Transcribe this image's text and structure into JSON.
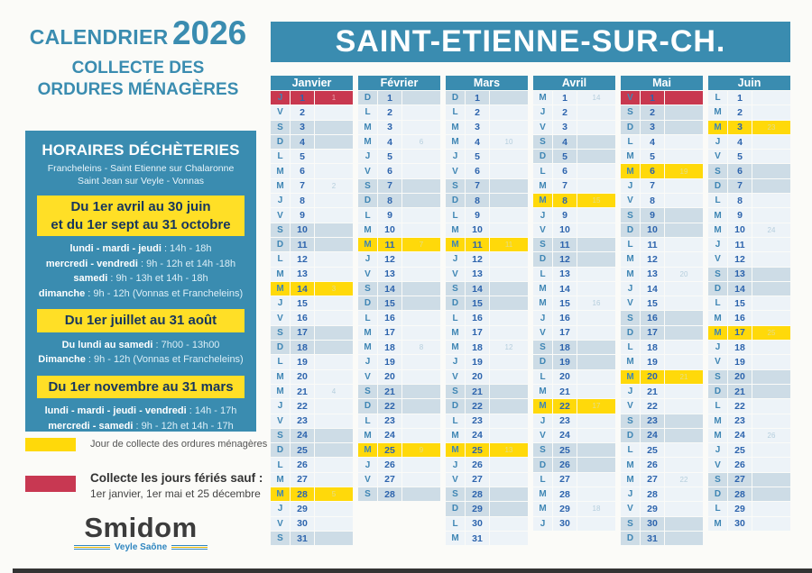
{
  "left": {
    "title_small": "CALENDRIER",
    "title_year": "2026",
    "subtitle_line1": "COLLECTE DES",
    "subtitle_line2": "ORDURES MÉNAGÈRES",
    "horaires": {
      "title": "HORAIRES DÉCHÈTERIES",
      "sites_line1": "Francheleins - Saint Etienne sur Chalaronne",
      "sites_line2": "Saint Jean sur Veyle - Vonnas",
      "periods": [
        {
          "banner_lines": [
            "Du 1er avril au 30 juin",
            "et du 1er sept au 31 octobre"
          ],
          "lines": [
            {
              "bold": "lundi - mardi - jeudi",
              "rest": " : 14h - 18h"
            },
            {
              "bold": "mercredi - vendredi",
              "rest": " : 9h - 12h et 14h -18h"
            },
            {
              "bold": "samedi",
              "rest": " : 9h - 13h et 14h - 18h"
            },
            {
              "bold": "dimanche",
              "rest": " : 9h - 12h (Vonnas et Francheleins)"
            }
          ]
        },
        {
          "banner_lines": [
            "Du 1er juillet au 31 août"
          ],
          "lines": [
            {
              "bold": "Du lundi au samedi",
              "rest": " : 7h00 - 13h00"
            },
            {
              "bold": "Dimanche",
              "rest": " : 9h - 12h (Vonnas et Francheleins)"
            }
          ]
        },
        {
          "banner_lines": [
            "Du 1er novembre au 31 mars"
          ],
          "lines": [
            {
              "bold": "lundi - mardi - jeudi - vendredi",
              "rest": " : 14h - 17h"
            },
            {
              "bold": "mercredi - samedi",
              "rest": " : 9h - 12h et 14h - 17h"
            }
          ]
        }
      ]
    },
    "legend": {
      "collect": {
        "color": "#ffd90a",
        "text": "Jour de collecte des ordures ménagères"
      },
      "holiday": {
        "color": "#c83852",
        "title": "Collecte les jours fériés sauf :",
        "subtitle": "1er janvier, 1er mai et 25 décembre"
      }
    },
    "logo": {
      "name": "Smidom",
      "sub": "Veyle Saône"
    }
  },
  "header": {
    "title": "SAINT-ETIENNE-SUR-CH."
  },
  "colors": {
    "teal": "#3a8cb0",
    "collect_yellow": "#ffd90a",
    "holiday_red": "#c8384f",
    "weekend_shade": "#cddce6",
    "weekday_shade": "#edf3f8",
    "banner_yellow": "#ffdf26"
  },
  "calendar": {
    "day_types_legend": {
      "n": "weekday",
      "w": "weekend",
      "c": "collection-day-yellow",
      "h": "holiday-no-collection-red"
    },
    "months": [
      {
        "name": "Janvier",
        "days": [
          [
            "J",
            1,
            "h",
            1
          ],
          [
            "V",
            2,
            "n"
          ],
          [
            "S",
            3,
            "w"
          ],
          [
            "D",
            4,
            "w"
          ],
          [
            "L",
            5,
            "n"
          ],
          [
            "M",
            6,
            "n"
          ],
          [
            "M",
            7,
            "n",
            2
          ],
          [
            "J",
            8,
            "n"
          ],
          [
            "V",
            9,
            "n"
          ],
          [
            "S",
            10,
            "w"
          ],
          [
            "D",
            11,
            "w"
          ],
          [
            "L",
            12,
            "n"
          ],
          [
            "M",
            13,
            "n"
          ],
          [
            "M",
            14,
            "c",
            3
          ],
          [
            "J",
            15,
            "n"
          ],
          [
            "V",
            16,
            "n"
          ],
          [
            "S",
            17,
            "w"
          ],
          [
            "D",
            18,
            "w"
          ],
          [
            "L",
            19,
            "n"
          ],
          [
            "M",
            20,
            "n"
          ],
          [
            "M",
            21,
            "n",
            4
          ],
          [
            "J",
            22,
            "n"
          ],
          [
            "V",
            23,
            "n"
          ],
          [
            "S",
            24,
            "w"
          ],
          [
            "D",
            25,
            "w"
          ],
          [
            "L",
            26,
            "n"
          ],
          [
            "M",
            27,
            "n"
          ],
          [
            "M",
            28,
            "c",
            5
          ],
          [
            "J",
            29,
            "n"
          ],
          [
            "V",
            30,
            "n"
          ],
          [
            "S",
            31,
            "w"
          ]
        ]
      },
      {
        "name": "Février",
        "days": [
          [
            "D",
            1,
            "w"
          ],
          [
            "L",
            2,
            "n"
          ],
          [
            "M",
            3,
            "n"
          ],
          [
            "M",
            4,
            "n",
            6
          ],
          [
            "J",
            5,
            "n"
          ],
          [
            "V",
            6,
            "n"
          ],
          [
            "S",
            7,
            "w"
          ],
          [
            "D",
            8,
            "w"
          ],
          [
            "L",
            9,
            "n"
          ],
          [
            "M",
            10,
            "n"
          ],
          [
            "M",
            11,
            "c",
            7
          ],
          [
            "J",
            12,
            "n"
          ],
          [
            "V",
            13,
            "n"
          ],
          [
            "S",
            14,
            "w"
          ],
          [
            "D",
            15,
            "w"
          ],
          [
            "L",
            16,
            "n"
          ],
          [
            "M",
            17,
            "n"
          ],
          [
            "M",
            18,
            "n",
            8
          ],
          [
            "J",
            19,
            "n"
          ],
          [
            "V",
            20,
            "n"
          ],
          [
            "S",
            21,
            "w"
          ],
          [
            "D",
            22,
            "w"
          ],
          [
            "L",
            23,
            "n"
          ],
          [
            "M",
            24,
            "n"
          ],
          [
            "M",
            25,
            "c",
            9
          ],
          [
            "J",
            26,
            "n"
          ],
          [
            "V",
            27,
            "n"
          ],
          [
            "S",
            28,
            "w"
          ]
        ]
      },
      {
        "name": "Mars",
        "days": [
          [
            "D",
            1,
            "w"
          ],
          [
            "L",
            2,
            "n"
          ],
          [
            "M",
            3,
            "n"
          ],
          [
            "M",
            4,
            "n",
            10
          ],
          [
            "J",
            5,
            "n"
          ],
          [
            "V",
            6,
            "n"
          ],
          [
            "S",
            7,
            "w"
          ],
          [
            "D",
            8,
            "w"
          ],
          [
            "L",
            9,
            "n"
          ],
          [
            "M",
            10,
            "n"
          ],
          [
            "M",
            11,
            "c",
            11
          ],
          [
            "J",
            12,
            "n"
          ],
          [
            "V",
            13,
            "n"
          ],
          [
            "S",
            14,
            "w"
          ],
          [
            "D",
            15,
            "w"
          ],
          [
            "L",
            16,
            "n"
          ],
          [
            "M",
            17,
            "n"
          ],
          [
            "M",
            18,
            "n",
            12
          ],
          [
            "J",
            19,
            "n"
          ],
          [
            "V",
            20,
            "n"
          ],
          [
            "S",
            21,
            "w"
          ],
          [
            "D",
            22,
            "w"
          ],
          [
            "L",
            23,
            "n"
          ],
          [
            "M",
            24,
            "n"
          ],
          [
            "M",
            25,
            "c",
            13
          ],
          [
            "J",
            26,
            "n"
          ],
          [
            "V",
            27,
            "n"
          ],
          [
            "S",
            28,
            "w"
          ],
          [
            "D",
            29,
            "w"
          ],
          [
            "L",
            30,
            "n"
          ],
          [
            "M",
            31,
            "n"
          ]
        ]
      },
      {
        "name": "Avril",
        "days": [
          [
            "M",
            1,
            "n",
            14
          ],
          [
            "J",
            2,
            "n"
          ],
          [
            "V",
            3,
            "n"
          ],
          [
            "S",
            4,
            "w"
          ],
          [
            "D",
            5,
            "w"
          ],
          [
            "L",
            6,
            "n"
          ],
          [
            "M",
            7,
            "n"
          ],
          [
            "M",
            8,
            "c",
            15
          ],
          [
            "J",
            9,
            "n"
          ],
          [
            "V",
            10,
            "n"
          ],
          [
            "S",
            11,
            "w"
          ],
          [
            "D",
            12,
            "w"
          ],
          [
            "L",
            13,
            "n"
          ],
          [
            "M",
            14,
            "n"
          ],
          [
            "M",
            15,
            "n",
            16
          ],
          [
            "J",
            16,
            "n"
          ],
          [
            "V",
            17,
            "n"
          ],
          [
            "S",
            18,
            "w"
          ],
          [
            "D",
            19,
            "w"
          ],
          [
            "L",
            20,
            "n"
          ],
          [
            "M",
            21,
            "n"
          ],
          [
            "M",
            22,
            "c",
            17
          ],
          [
            "J",
            23,
            "n"
          ],
          [
            "V",
            24,
            "n"
          ],
          [
            "S",
            25,
            "w"
          ],
          [
            "D",
            26,
            "w"
          ],
          [
            "L",
            27,
            "n"
          ],
          [
            "M",
            28,
            "n"
          ],
          [
            "M",
            29,
            "n",
            18
          ],
          [
            "J",
            30,
            "n"
          ]
        ]
      },
      {
        "name": "Mai",
        "days": [
          [
            "V",
            1,
            "h"
          ],
          [
            "S",
            2,
            "w"
          ],
          [
            "D",
            3,
            "w"
          ],
          [
            "L",
            4,
            "n"
          ],
          [
            "M",
            5,
            "n"
          ],
          [
            "M",
            6,
            "c",
            19
          ],
          [
            "J",
            7,
            "n"
          ],
          [
            "V",
            8,
            "n"
          ],
          [
            "S",
            9,
            "w"
          ],
          [
            "D",
            10,
            "w"
          ],
          [
            "L",
            11,
            "n"
          ],
          [
            "M",
            12,
            "n"
          ],
          [
            "M",
            13,
            "n",
            20
          ],
          [
            "J",
            14,
            "n"
          ],
          [
            "V",
            15,
            "n"
          ],
          [
            "S",
            16,
            "w"
          ],
          [
            "D",
            17,
            "w"
          ],
          [
            "L",
            18,
            "n"
          ],
          [
            "M",
            19,
            "n"
          ],
          [
            "M",
            20,
            "c",
            21
          ],
          [
            "J",
            21,
            "n"
          ],
          [
            "V",
            22,
            "n"
          ],
          [
            "S",
            23,
            "w"
          ],
          [
            "D",
            24,
            "w"
          ],
          [
            "L",
            25,
            "n"
          ],
          [
            "M",
            26,
            "n"
          ],
          [
            "M",
            27,
            "n",
            22
          ],
          [
            "J",
            28,
            "n"
          ],
          [
            "V",
            29,
            "n"
          ],
          [
            "S",
            30,
            "w"
          ],
          [
            "D",
            31,
            "w"
          ]
        ]
      },
      {
        "name": "Juin",
        "days": [
          [
            "L",
            1,
            "n"
          ],
          [
            "M",
            2,
            "n"
          ],
          [
            "M",
            3,
            "c",
            23
          ],
          [
            "J",
            4,
            "n"
          ],
          [
            "V",
            5,
            "n"
          ],
          [
            "S",
            6,
            "w"
          ],
          [
            "D",
            7,
            "w"
          ],
          [
            "L",
            8,
            "n"
          ],
          [
            "M",
            9,
            "n"
          ],
          [
            "M",
            10,
            "n",
            24
          ],
          [
            "J",
            11,
            "n"
          ],
          [
            "V",
            12,
            "n"
          ],
          [
            "S",
            13,
            "w"
          ],
          [
            "D",
            14,
            "w"
          ],
          [
            "L",
            15,
            "n"
          ],
          [
            "M",
            16,
            "n"
          ],
          [
            "M",
            17,
            "c",
            25
          ],
          [
            "J",
            18,
            "n"
          ],
          [
            "V",
            19,
            "n"
          ],
          [
            "S",
            20,
            "w"
          ],
          [
            "D",
            21,
            "w"
          ],
          [
            "L",
            22,
            "n"
          ],
          [
            "M",
            23,
            "n"
          ],
          [
            "M",
            24,
            "n",
            26
          ],
          [
            "J",
            25,
            "n"
          ],
          [
            "V",
            26,
            "n"
          ],
          [
            "S",
            27,
            "w"
          ],
          [
            "D",
            28,
            "w"
          ],
          [
            "L",
            29,
            "n"
          ],
          [
            "M",
            30,
            "n"
          ]
        ]
      }
    ]
  }
}
